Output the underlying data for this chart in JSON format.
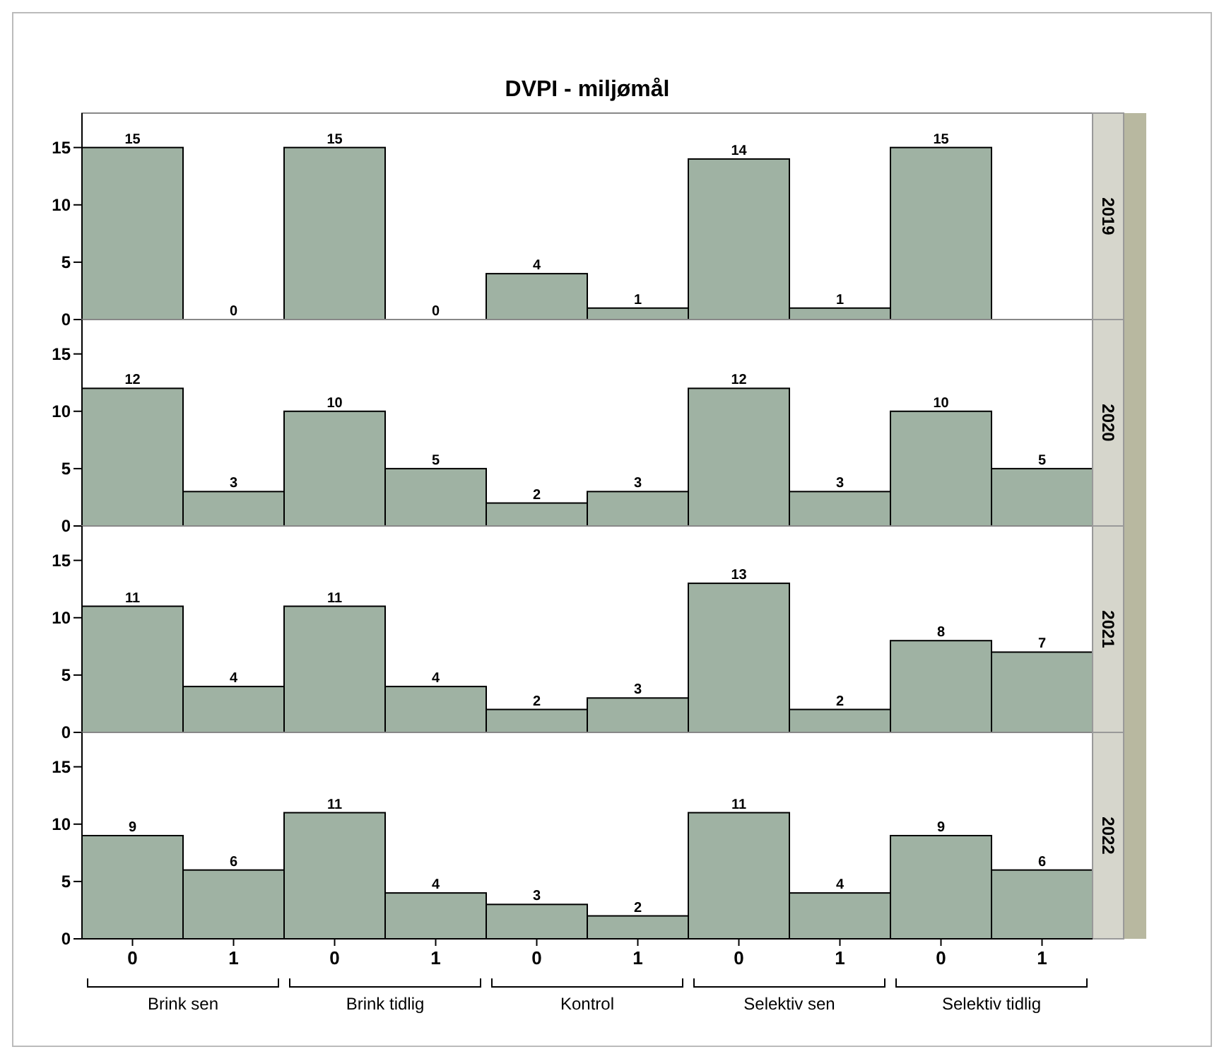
{
  "chart_data": [
    {
      "type": "bar",
      "title": "DVPI - miljømål",
      "subtitle": "2019",
      "categories": [
        "0",
        "1",
        "0",
        "1",
        "0",
        "1",
        "0",
        "1",
        "0",
        "1"
      ],
      "values": [
        15,
        0,
        15,
        0,
        4,
        1,
        14,
        1,
        15,
        null
      ],
      "color": "#9fb2a3",
      "ylim": [
        0,
        18
      ],
      "yticks": [
        0,
        5,
        10,
        15
      ],
      "data_labels": true,
      "tick_labels": "y"
    },
    {
      "type": "bar",
      "subtitle": "2020",
      "categories": [
        "0",
        "1",
        "0",
        "1",
        "0",
        "1",
        "0",
        "1",
        "0",
        "1"
      ],
      "values": [
        12,
        3,
        10,
        5,
        2,
        3,
        12,
        3,
        10,
        5
      ],
      "color": "#9fb2a3",
      "ylim": [
        0,
        18
      ],
      "yticks": [
        0,
        5,
        10,
        15
      ],
      "data_labels": true,
      "tick_labels": "y"
    },
    {
      "type": "bar",
      "subtitle": "2021",
      "categories": [
        "0",
        "1",
        "0",
        "1",
        "0",
        "1",
        "0",
        "1",
        "0",
        "1"
      ],
      "values": [
        11,
        4,
        11,
        4,
        2,
        3,
        13,
        2,
        8,
        7
      ],
      "color": "#9fb2a3",
      "ylim": [
        0,
        18
      ],
      "yticks": [
        0,
        5,
        10,
        15
      ],
      "data_labels": true,
      "tick_labels": "y"
    },
    {
      "type": "bar",
      "subtitle": "2022",
      "categories": [
        "0",
        "1",
        "0",
        "1",
        "0",
        "1",
        "0",
        "1",
        "0",
        "1"
      ],
      "values": [
        9,
        6,
        11,
        4,
        3,
        2,
        11,
        4,
        9,
        6
      ],
      "color": "#9fb2a3",
      "ylim": [
        0,
        18
      ],
      "yticks": [
        0,
        5,
        10,
        15
      ],
      "data_labels": true,
      "annotations": [
        "Brink sen",
        "Brink tidlig",
        "Kontrol",
        "Selektiv sen",
        "Selektiv tidlig"
      ]
    }
  ]
}
